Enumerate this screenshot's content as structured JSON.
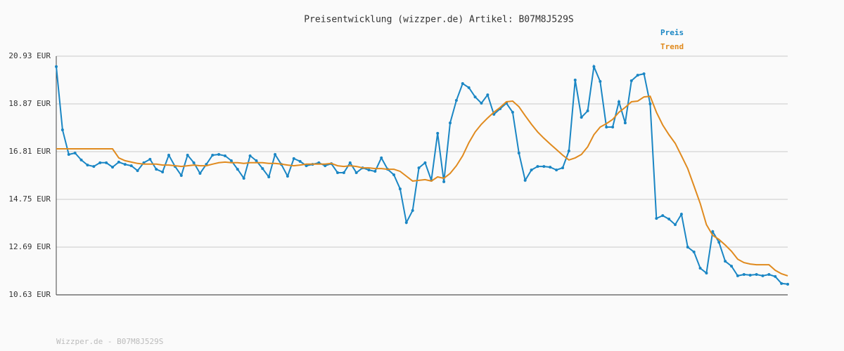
{
  "chart_data": {
    "type": "line",
    "title": "Preisentwicklung (wizzper.de) Artikel: B07M8J529S",
    "footer": "Wizzper.de - B07M8J529S",
    "ylim": [
      10.63,
      20.93
    ],
    "yticks": [
      {
        "value": 10.63,
        "label": "10.63 EUR"
      },
      {
        "value": 12.69,
        "label": "12.69 EUR"
      },
      {
        "value": 14.75,
        "label": "14.75 EUR"
      },
      {
        "value": 16.81,
        "label": "16.81 EUR"
      },
      {
        "value": 18.87,
        "label": "18.87 EUR"
      },
      {
        "value": 20.93,
        "label": "20.93 EUR"
      }
    ],
    "grid": true,
    "legend": "top-right",
    "series": [
      {
        "name": "Preis",
        "color": "#1a86c4",
        "markers": true,
        "values": [
          20.48,
          17.75,
          16.69,
          16.75,
          16.45,
          16.23,
          16.17,
          16.33,
          16.33,
          16.14,
          16.36,
          16.26,
          16.2,
          15.99,
          16.33,
          16.48,
          16.05,
          15.93,
          16.66,
          16.17,
          15.78,
          16.66,
          16.33,
          15.87,
          16.26,
          16.66,
          16.69,
          16.63,
          16.42,
          16.05,
          15.66,
          16.63,
          16.42,
          16.08,
          15.72,
          16.69,
          16.26,
          15.75,
          16.51,
          16.39,
          16.2,
          16.26,
          16.33,
          16.2,
          16.29,
          15.9,
          15.9,
          16.33,
          15.9,
          16.11,
          16.02,
          15.96,
          16.54,
          16.05,
          15.81,
          15.2,
          13.75,
          14.27,
          16.11,
          16.33,
          15.57,
          17.6,
          15.51,
          18.05,
          19.02,
          19.75,
          19.57,
          19.17,
          18.9,
          19.26,
          18.42,
          18.66,
          18.9,
          18.51,
          16.75,
          15.57,
          16.02,
          16.17,
          16.17,
          16.14,
          16.02,
          16.11,
          16.84,
          19.9,
          18.29,
          18.57,
          20.48,
          19.84,
          17.87,
          17.87,
          18.96,
          18.05,
          19.87,
          20.11,
          20.17,
          18.87,
          13.93,
          14.05,
          13.9,
          13.66,
          14.11,
          12.69,
          12.48,
          11.78,
          11.57,
          13.36,
          12.9,
          12.08,
          11.87,
          11.45,
          11.51,
          11.48,
          11.51,
          11.45,
          11.51,
          11.42,
          11.12,
          11.09
        ]
      },
      {
        "name": "Trend",
        "color": "#e08a1e",
        "markers": false,
        "values": [
          16.93,
          16.93,
          16.93,
          16.93,
          16.93,
          16.93,
          16.93,
          16.93,
          16.93,
          16.93,
          16.54,
          16.42,
          16.36,
          16.3,
          16.27,
          16.27,
          16.27,
          16.23,
          16.23,
          16.2,
          16.17,
          16.2,
          16.23,
          16.2,
          16.2,
          16.27,
          16.33,
          16.36,
          16.33,
          16.33,
          16.3,
          16.33,
          16.33,
          16.33,
          16.3,
          16.3,
          16.27,
          16.23,
          16.2,
          16.23,
          16.27,
          16.27,
          16.27,
          16.27,
          16.3,
          16.2,
          16.17,
          16.2,
          16.17,
          16.11,
          16.11,
          16.08,
          16.08,
          16.05,
          16.05,
          15.96,
          15.75,
          15.54,
          15.57,
          15.6,
          15.54,
          15.72,
          15.66,
          15.87,
          16.2,
          16.63,
          17.2,
          17.66,
          17.99,
          18.26,
          18.51,
          18.72,
          18.96,
          18.99,
          18.75,
          18.36,
          17.99,
          17.66,
          17.39,
          17.14,
          16.9,
          16.66,
          16.45,
          16.54,
          16.69,
          17.02,
          17.54,
          17.87,
          18.02,
          18.2,
          18.51,
          18.72,
          18.96,
          18.99,
          19.17,
          19.2,
          18.51,
          17.96,
          17.54,
          17.17,
          16.63,
          16.08,
          15.33,
          14.57,
          13.66,
          13.2,
          13.02,
          12.78,
          12.51,
          12.17,
          12.02,
          11.96,
          11.93,
          11.93,
          11.93,
          11.69,
          11.54,
          11.45
        ]
      }
    ]
  }
}
